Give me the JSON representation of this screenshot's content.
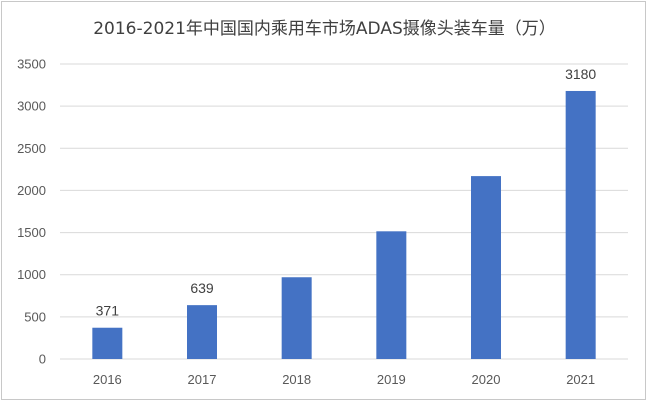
{
  "chart_data": {
    "type": "bar",
    "title": "2016-2021年中国国内乘用车市场ADAS摄像头装车量（万）",
    "categories": [
      "2016",
      "2017",
      "2018",
      "2019",
      "2020",
      "2021"
    ],
    "values": [
      371,
      639,
      970,
      1515,
      2170,
      3180
    ],
    "data_labels": [
      "371",
      "639",
      null,
      null,
      null,
      "3180"
    ],
    "xlabel": "",
    "ylabel": "",
    "ylim": [
      0,
      3500
    ],
    "yticks": [
      0,
      500,
      1000,
      1500,
      2000,
      2500,
      3000,
      3500
    ],
    "grid": true,
    "legend": "none",
    "colors": {
      "bar": "#4472C4",
      "grid": "#d9d9d9",
      "tick": "#595959"
    }
  }
}
